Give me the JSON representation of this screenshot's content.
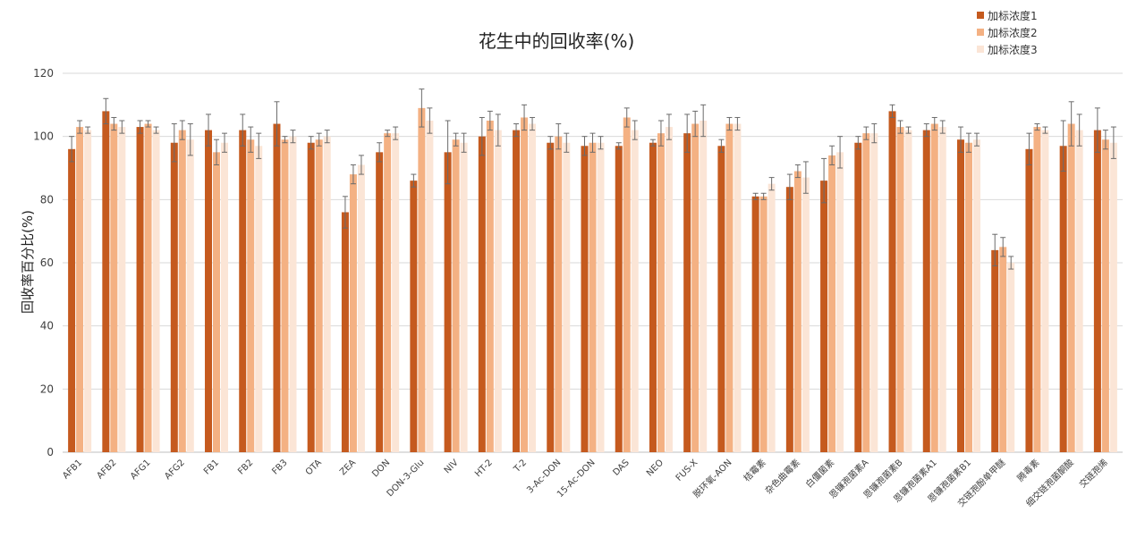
{
  "chart_data": {
    "type": "bar",
    "title": "花生中的回收率(%)",
    "xlabel": "",
    "ylabel": "回收率百分比(%)",
    "ylim": [
      0,
      120
    ],
    "yticks": [
      0,
      20,
      40,
      60,
      80,
      100,
      120
    ],
    "grid": true,
    "legend_position": "top-right",
    "colors": [
      "#c55a1e",
      "#f4b183",
      "#fbe5d6"
    ],
    "categories": [
      "AFB1",
      "AFB2",
      "AFG1",
      "AFG2",
      "FB1",
      "FB2",
      "FB3",
      "OTA",
      "ZEA",
      "DON",
      "DON-3-Glu",
      "NIV",
      "HT-2",
      "T-2",
      "3-Ac-DON",
      "15-Ac-DON",
      "DAS",
      "NEO",
      "FUS-X",
      "脱环氧-AON",
      "桔霉素",
      "杂色曲霉素",
      "白僵菌素",
      "恩镰孢菌素A",
      "恩镰孢菌素B",
      "恩镰孢菌素A1",
      "恩镰孢菌素B1",
      "交链孢酚单甲醚",
      "腾毒素",
      "细交链孢菌酮酸",
      "交链孢烯"
    ],
    "series": [
      {
        "name": "加标浓度1",
        "values": [
          96,
          108,
          103,
          98,
          102,
          102,
          104,
          98,
          76,
          95,
          86,
          95,
          100,
          102,
          98,
          97,
          97,
          98,
          101,
          97,
          81,
          84,
          86,
          98,
          108,
          102,
          99,
          64,
          96,
          97,
          102
        ],
        "errors": [
          4,
          4,
          2,
          6,
          5,
          5,
          7,
          2,
          5,
          3,
          2,
          10,
          6,
          2,
          2,
          3,
          1,
          1,
          6,
          2,
          1,
          4,
          7,
          2,
          2,
          2,
          4,
          5,
          5,
          8,
          7
        ]
      },
      {
        "name": "加标浓度2",
        "values": [
          103,
          104,
          104,
          102,
          95,
          99,
          99,
          99,
          88,
          101,
          109,
          99,
          105,
          106,
          100,
          98,
          106,
          101,
          104,
          104,
          81,
          89,
          94,
          101,
          103,
          104,
          98,
          65,
          103,
          104,
          99
        ],
        "errors": [
          2,
          2,
          1,
          3,
          4,
          4,
          1,
          2,
          3,
          1,
          6,
          2,
          3,
          4,
          4,
          3,
          3,
          4,
          4,
          2,
          1,
          2,
          3,
          2,
          2,
          2,
          3,
          3,
          1,
          7,
          3
        ]
      },
      {
        "name": "加标浓度3",
        "values": [
          102,
          103,
          102,
          99,
          98,
          97,
          100,
          100,
          91,
          101,
          105,
          98,
          102,
          104,
          98,
          98,
          102,
          103,
          105,
          104,
          85,
          87,
          95,
          101,
          102,
          103,
          99,
          60,
          102,
          102,
          98
        ],
        "errors": [
          1,
          2,
          1,
          5,
          3,
          4,
          2,
          2,
          3,
          2,
          4,
          3,
          5,
          2,
          3,
          2,
          3,
          4,
          5,
          2,
          2,
          5,
          5,
          3,
          1,
          2,
          2,
          2,
          1,
          5,
          5
        ]
      }
    ]
  }
}
